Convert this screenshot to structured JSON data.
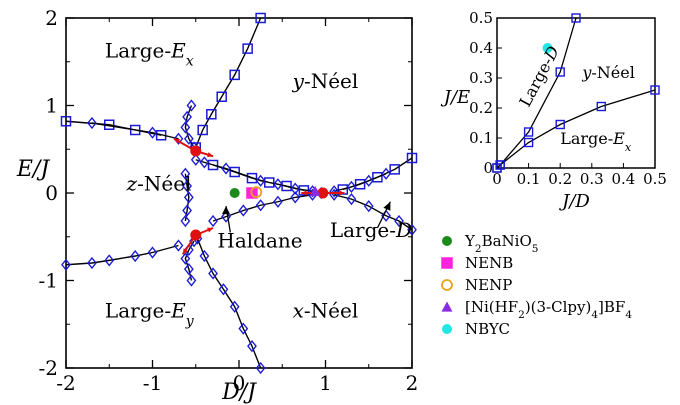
{
  "chart_data": [
    {
      "type": "line",
      "xlabel": "D/J",
      "ylabel": "E/J",
      "xlim": [
        -2,
        2
      ],
      "ylim": [
        -2,
        2
      ],
      "xticks": [
        "-2",
        "-1",
        "0",
        "1",
        "2"
      ],
      "yticks": [
        "-2",
        "-1",
        "0",
        "1",
        "2"
      ],
      "grid": false,
      "region_labels": [
        {
          "text": "Large-E",
          "sub": "x",
          "x": -1.55,
          "y": 1.55
        },
        {
          "text": "y-Néel",
          "x": 0.62,
          "y": 1.2
        },
        {
          "text": "z-Néel",
          "x": -1.3,
          "y": 0.03
        },
        {
          "text": "Large-E",
          "sub": "y",
          "x": -1.55,
          "y": -1.42
        },
        {
          "text": "x-Néel",
          "x": 0.62,
          "y": -1.42
        },
        {
          "text": "Haldane",
          "x": -0.25,
          "y": -0.62
        },
        {
          "text": "Large-D",
          "x": 1.05,
          "y": -0.5
        }
      ],
      "series": [
        {
          "marker": "square",
          "points": [
            [
              0.25,
              2.0
            ],
            [
              0.1,
              1.65
            ],
            [
              -0.05,
              1.35
            ],
            [
              -0.2,
              1.1
            ],
            [
              -0.32,
              0.9
            ],
            [
              -0.42,
              0.72
            ],
            [
              -0.5,
              0.52
            ]
          ]
        },
        {
          "marker": "diamond",
          "points": [
            [
              -0.55,
              1.0
            ],
            [
              -0.6,
              0.87
            ],
            [
              -0.62,
              0.75
            ],
            [
              -0.58,
              0.62
            ],
            [
              -0.52,
              0.52
            ]
          ]
        },
        {
          "marker": "square",
          "points": [
            [
              -2.0,
              0.82
            ],
            [
              -1.5,
              0.78
            ],
            [
              -1.2,
              0.72
            ],
            [
              -0.9,
              0.66
            ]
          ]
        },
        {
          "marker": "diamond",
          "points": [
            [
              -1.7,
              0.8
            ],
            [
              -1.0,
              0.69
            ],
            [
              -0.7,
              0.62
            ]
          ]
        },
        {
          "marker": "square",
          "points": [
            [
              -0.3,
              0.32
            ],
            [
              -0.05,
              0.24
            ],
            [
              0.15,
              0.17
            ],
            [
              0.35,
              0.12
            ],
            [
              0.55,
              0.08
            ],
            [
              0.75,
              0.03
            ]
          ]
        },
        {
          "marker": "diamond",
          "points": [
            [
              -0.5,
              0.38
            ],
            [
              -0.4,
              0.35
            ],
            [
              -0.15,
              0.28
            ],
            [
              0.25,
              0.14
            ],
            [
              0.45,
              0.1
            ],
            [
              0.65,
              0.05
            ],
            [
              0.85,
              0.02
            ],
            [
              0.95,
              0.0
            ]
          ]
        },
        {
          "marker": "square",
          "points": [
            [
              1.2,
              0.04
            ],
            [
              1.4,
              0.1
            ],
            [
              1.6,
              0.18
            ],
            [
              1.8,
              0.27
            ],
            [
              2.0,
              0.4
            ]
          ]
        },
        {
          "marker": "diamond",
          "points": [
            [
              1.1,
              0.02
            ],
            [
              1.3,
              0.07
            ],
            [
              1.5,
              0.14
            ],
            [
              1.7,
              0.22
            ]
          ]
        },
        {
          "marker": "diamond",
          "points": [
            [
              -0.62,
              0.22
            ],
            [
              -0.6,
              0.08
            ],
            [
              -0.58,
              -0.05
            ],
            [
              -0.6,
              -0.2
            ],
            [
              -0.62,
              -0.32
            ]
          ]
        },
        {
          "marker": "diamond",
          "points": [
            [
              -0.3,
              -0.32
            ],
            [
              -0.15,
              -0.27
            ],
            [
              0.05,
              -0.2
            ],
            [
              0.25,
              -0.14
            ],
            [
              0.45,
              -0.1
            ],
            [
              0.65,
              -0.05
            ],
            [
              0.85,
              -0.02
            ]
          ]
        },
        {
          "marker": "diamond",
          "points": [
            [
              1.1,
              -0.02
            ],
            [
              1.3,
              -0.07
            ],
            [
              1.5,
              -0.15
            ],
            [
              1.7,
              -0.26
            ],
            [
              1.85,
              -0.32
            ],
            [
              2.0,
              -0.42
            ]
          ]
        },
        {
          "marker": "diamond",
          "points": [
            [
              -2.0,
              -0.82
            ],
            [
              -1.7,
              -0.8
            ],
            [
              -1.5,
              -0.77
            ],
            [
              -1.2,
              -0.72
            ],
            [
              -1.0,
              -0.68
            ],
            [
              -0.7,
              -0.6
            ]
          ]
        },
        {
          "marker": "diamond",
          "points": [
            [
              -0.52,
              -0.55
            ],
            [
              -0.58,
              -0.65
            ],
            [
              -0.62,
              -0.75
            ],
            [
              -0.58,
              -0.87
            ],
            [
              -0.55,
              -1.0
            ]
          ]
        },
        {
          "marker": "diamond",
          "points": [
            [
              -0.48,
              -0.52
            ],
            [
              -0.4,
              -0.72
            ],
            [
              -0.3,
              -0.92
            ],
            [
              -0.18,
              -1.1
            ],
            [
              -0.05,
              -1.3
            ],
            [
              0.05,
              -1.55
            ],
            [
              0.15,
              -1.75
            ],
            [
              0.25,
              -2.0
            ]
          ]
        }
      ],
      "critical_points": [
        [
          -0.5,
          0.48
        ],
        [
          -0.5,
          -0.48
        ],
        [
          0.97,
          0.0
        ]
      ],
      "materials": [
        {
          "name": "Y2BaNiO5",
          "x": -0.05,
          "y": 0.0,
          "marker": "circle",
          "color": "#1a8a1a"
        },
        {
          "name": "NENB",
          "x": 0.15,
          "y": 0.0,
          "marker": "square",
          "color": "#ff22dd"
        },
        {
          "name": "NENP",
          "x": 0.2,
          "y": 0.01,
          "marker": "ring",
          "color": "#e8a317"
        },
        {
          "name": "[Ni(HF2)(3-Clpy)4]BF4",
          "x": 0.88,
          "y": 0.02,
          "marker": "triangle",
          "color": "#8a2be2"
        }
      ]
    },
    {
      "type": "line",
      "xlabel": "J/D",
      "ylabel": "J/E",
      "xlim": [
        0,
        0.5
      ],
      "ylim": [
        0,
        0.5
      ],
      "xticks": [
        "0",
        "0.1",
        "0.2",
        "0.3",
        "0.4",
        "0.5"
      ],
      "yticks": [
        "0",
        "0.1",
        "0.2",
        "0.3",
        "0.4",
        "0.5"
      ],
      "region_labels": [
        {
          "text": "Large-D",
          "x": 0.1,
          "y": 0.2,
          "rotate": -62
        },
        {
          "text": "y-Néel",
          "x": 0.27,
          "y": 0.3
        },
        {
          "text": "Large-E",
          "sub": "x",
          "x": 0.2,
          "y": 0.08
        }
      ],
      "series": [
        {
          "name": "upper",
          "points": [
            [
              0,
              0
            ],
            [
              0.01,
              0.01
            ],
            [
              0.1,
              0.12
            ],
            [
              0.2,
              0.32
            ],
            [
              0.25,
              0.5
            ]
          ]
        },
        {
          "name": "lower",
          "points": [
            [
              0,
              0
            ],
            [
              0.01,
              0.01
            ],
            [
              0.1,
              0.085
            ],
            [
              0.2,
              0.145
            ],
            [
              0.33,
              0.205
            ],
            [
              0.5,
              0.26
            ]
          ]
        }
      ],
      "materials": [
        {
          "name": "NBYC",
          "x": 0.16,
          "y": 0.4,
          "marker": "circle",
          "color": "#22e5e5"
        }
      ]
    }
  ],
  "legend": [
    {
      "label": "Y",
      "sub1": "2",
      "label2": "BaNiO",
      "sub2": "5",
      "marker": "circle",
      "color": "#1a8a1a"
    },
    {
      "label": "NENB",
      "marker": "square",
      "color": "#ff22dd"
    },
    {
      "label": "NENP",
      "marker": "ring",
      "color": "#e8a317"
    },
    {
      "label": "[Ni(HF",
      "sub1": "2",
      "label2": ")(3-Clpy)",
      "sub2": "4",
      "label3": "]BF",
      "sub3": "4",
      "marker": "triangle",
      "color": "#8a2be2"
    },
    {
      "label": "NBYC",
      "marker": "circle",
      "color": "#22e5e5"
    }
  ],
  "colors": {
    "line": "#000000",
    "marker": "#1a1ad6",
    "critical": "#e01010",
    "arrow": "#e01010"
  }
}
